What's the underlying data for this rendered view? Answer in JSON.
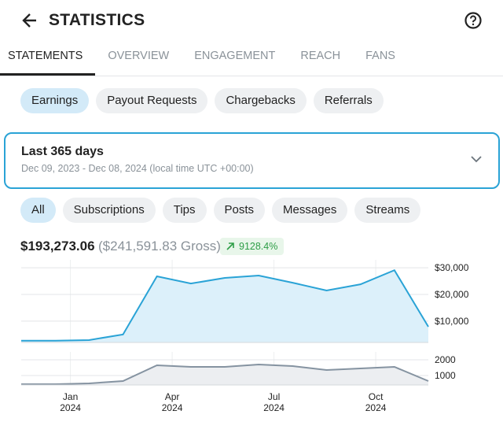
{
  "header": {
    "title": "STATISTICS"
  },
  "tabs": [
    "STATEMENTS",
    "OVERVIEW",
    "ENGAGEMENT",
    "REACH",
    "FANS"
  ],
  "report_types": [
    "Earnings",
    "Payout Requests",
    "Chargebacks",
    "Referrals"
  ],
  "period": {
    "title": "Last 365 days",
    "range": "Dec 09, 2023 - Dec 08, 2024 (local time UTC +00:00)"
  },
  "sources": [
    "All",
    "Subscriptions",
    "Tips",
    "Posts",
    "Messages",
    "Streams"
  ],
  "summary": {
    "net": "$193,273.06",
    "gross": "($241,591.83 Gross)",
    "change": "9128.4%"
  },
  "chart_data": [
    {
      "type": "area",
      "color": "#2aa3d6",
      "fill": "#dcf0fa",
      "x": [
        "2023-12",
        "2024-01",
        "2024-02",
        "2024-03",
        "2024-04",
        "2024-05",
        "2024-06",
        "2024-07",
        "2024-08",
        "2024-09",
        "2024-10",
        "2024-11",
        "2024-12"
      ],
      "values": [
        2650,
        2650,
        2900,
        5000,
        26800,
        24100,
        26200,
        27100,
        24400,
        21500,
        23800,
        29100,
        7900
      ],
      "ylim": [
        2000,
        33000
      ],
      "yticks": [
        {
          "value": 10000,
          "label": "$10,000"
        },
        {
          "value": 20000,
          "label": "$20,000"
        },
        {
          "value": 30000,
          "label": "$30,000"
        }
      ],
      "grid": true
    },
    {
      "type": "area",
      "color": "#8593a1",
      "fill": "#eceef1",
      "x": [
        "2023-12",
        "2024-01",
        "2024-02",
        "2024-03",
        "2024-04",
        "2024-05",
        "2024-06",
        "2024-07",
        "2024-08",
        "2024-09",
        "2024-10",
        "2024-11",
        "2024-12"
      ],
      "values": [
        450,
        450,
        500,
        650,
        1650,
        1550,
        1550,
        1700,
        1600,
        1350,
        1450,
        1550,
        650
      ],
      "ylim": [
        400,
        2500
      ],
      "yticks": [
        1000,
        2000
      ],
      "xticks": [
        {
          "value": "2024-01",
          "label": "Jan",
          "year": "2024"
        },
        {
          "value": "2024-04",
          "label": "Apr",
          "year": "2024"
        },
        {
          "value": "2024-07",
          "label": "Jul",
          "year": "2024"
        },
        {
          "value": "2024-10",
          "label": "Oct",
          "year": "2024"
        }
      ],
      "grid": true
    }
  ]
}
